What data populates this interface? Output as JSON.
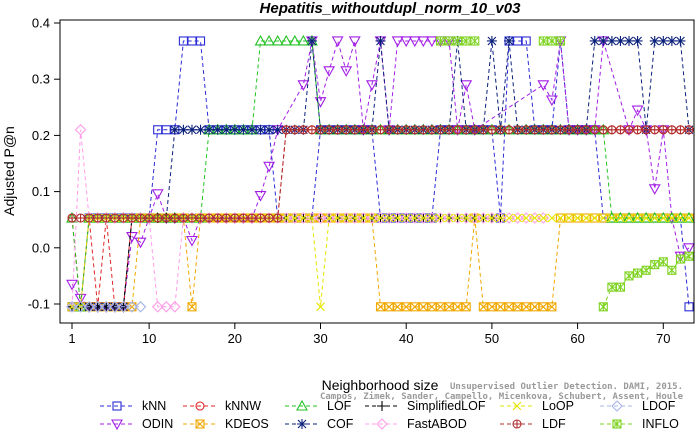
{
  "chart_data": {
    "type": "line",
    "title": "Hepatitis_withoutdupl_norm_10_v03",
    "xlabel": "Neighborhood size",
    "ylabel": "Adjusted P@n",
    "xlim": [
      1,
      73
    ],
    "ylim": [
      -0.12,
      0.39
    ],
    "x_ticks": [
      1,
      10,
      20,
      30,
      40,
      50,
      60,
      70
    ],
    "y_ticks": [
      -0.1,
      0.0,
      0.1,
      0.2,
      0.3,
      0.4
    ],
    "x_tick_labels": [
      "1",
      "10",
      "20",
      "30",
      "40",
      "50",
      "60",
      "70"
    ],
    "y_tick_labels": [
      "-0.1",
      "0.0",
      "0.1",
      "0.2",
      "0.3",
      "0.4"
    ],
    "credit_lines": [
      "Unsupervised Outlier Detection. DAMI, 2015.",
      "Campos, Zimek, Sander, Campello, Micenkova, Schubert, Assent, Houle"
    ],
    "grid": false,
    "legend_position": "bottom",
    "series": [
      {
        "name": "kNN",
        "color": "#2b2bd6",
        "marker": "square",
        "segments": [
          [
            [
              1,
              -0.105
            ],
            [
              2,
              -0.105
            ],
            [
              3,
              0.053
            ],
            [
              9,
              0.053
            ],
            [
              10,
              0.053
            ],
            [
              11,
              0.21
            ],
            [
              12,
              0.21
            ],
            [
              13,
              0.21
            ],
            [
              14,
              0.368
            ],
            [
              16,
              0.368
            ],
            [
              17,
              0.21
            ],
            [
              24,
              0.21
            ],
            [
              25,
              0.053
            ],
            [
              29,
              0.053
            ],
            [
              30,
              0.21
            ],
            [
              36,
              0.21
            ],
            [
              37,
              0.053
            ],
            [
              43,
              0.053
            ],
            [
              44,
              0.21
            ],
            [
              50,
              0.21
            ],
            [
              51,
              0.053
            ],
            [
              52,
              0.368
            ],
            [
              54,
              0.368
            ],
            [
              55,
              0.21
            ],
            [
              57,
              0.21
            ],
            [
              58,
              0.368
            ],
            [
              59,
              0.21
            ],
            [
              62,
              0.21
            ],
            [
              63,
              0.053
            ],
            [
              72,
              0.053
            ],
            [
              73,
              -0.105
            ]
          ]
        ]
      },
      {
        "name": "ODIN",
        "color": "#a21ee6",
        "marker": "triangle-down",
        "segments": [
          [
            [
              1,
              -0.065
            ],
            [
              2,
              -0.09
            ],
            [
              3,
              -0.105
            ],
            [
              7,
              -0.105
            ],
            [
              8,
              0.02
            ],
            [
              9,
              0.01
            ],
            [
              10,
              0.053
            ],
            [
              11,
              0.096
            ],
            [
              12,
              0.053
            ],
            [
              13,
              0.053
            ],
            [
              14,
              0.053
            ],
            [
              15,
              0.013
            ],
            [
              16,
              0.053
            ],
            [
              22,
              0.053
            ],
            [
              23,
              0.093
            ],
            [
              24,
              0.145
            ],
            [
              25,
              0.21
            ],
            [
              28,
              0.29
            ],
            [
              29,
              0.368
            ],
            [
              30,
              0.26
            ],
            [
              31,
              0.315
            ],
            [
              32,
              0.368
            ],
            [
              33,
              0.315
            ],
            [
              34,
              0.368
            ],
            [
              35,
              0.21
            ],
            [
              36,
              0.29
            ],
            [
              37,
              0.368
            ],
            [
              38,
              0.21
            ],
            [
              39,
              0.368
            ],
            [
              45,
              0.368
            ],
            [
              46,
              0.21
            ],
            [
              47,
              0.29
            ],
            [
              48,
              0.21
            ],
            [
              56,
              0.29
            ],
            [
              57,
              0.263
            ],
            [
              58,
              0.368
            ],
            [
              59,
              0.21
            ],
            [
              62,
              0.21
            ],
            [
              63,
              0.368
            ],
            [
              66,
              0.21
            ],
            [
              67,
              0.245
            ],
            [
              68,
              0.21
            ],
            [
              69,
              0.105
            ],
            [
              70,
              0.21
            ],
            [
              71,
              0.053
            ],
            [
              72,
              -0.015
            ],
            [
              73,
              0.0
            ]
          ]
        ]
      },
      {
        "name": "kNNW",
        "color": "#e02424",
        "marker": "circle",
        "segments": [
          [
            [
              1,
              0.053
            ],
            [
              2,
              -0.105
            ],
            [
              3,
              0.053
            ],
            [
              4,
              -0.105
            ],
            [
              5,
              0.053
            ],
            [
              6,
              -0.105
            ],
            [
              7,
              -0.105
            ],
            [
              8,
              0.053
            ],
            [
              25,
              0.053
            ],
            [
              26,
              0.21
            ],
            [
              73,
              0.21
            ]
          ]
        ]
      },
      {
        "name": "KDEOS",
        "color": "#f0a800",
        "marker": "square-x",
        "segments": [
          [
            [
              1,
              -0.105
            ],
            [
              8,
              -0.105
            ],
            [
              9,
              0.053
            ],
            [
              14,
              0.053
            ],
            [
              15,
              -0.105
            ],
            [
              16,
              0.053
            ],
            [
              36,
              0.053
            ],
            [
              37,
              -0.105
            ],
            [
              47,
              -0.105
            ],
            [
              48,
              0.053
            ],
            [
              49,
              -0.105
            ],
            [
              57,
              -0.105
            ],
            [
              58,
              0.053
            ],
            [
              73,
              0.053
            ]
          ]
        ]
      },
      {
        "name": "LOF",
        "color": "#22c222",
        "marker": "triangle-up",
        "segments": [
          [
            [
              1,
              0.053
            ],
            [
              2,
              -0.105
            ],
            [
              3,
              0.053
            ],
            [
              16,
              0.053
            ],
            [
              17,
              0.21
            ],
            [
              22,
              0.21
            ],
            [
              23,
              0.368
            ],
            [
              29,
              0.368
            ],
            [
              30,
              0.21
            ],
            [
              63,
              0.21
            ],
            [
              64,
              0.053
            ],
            [
              73,
              0.053
            ]
          ]
        ]
      },
      {
        "name": "COF",
        "color": "#0a1f7a",
        "marker": "star",
        "segments": [
          [
            [
              1,
              -0.105
            ],
            [
              7,
              -0.105
            ],
            [
              8,
              0.053
            ],
            [
              12,
              0.053
            ],
            [
              13,
              0.21
            ],
            [
              28,
              0.21
            ],
            [
              29,
              0.368
            ],
            [
              30,
              0.21
            ],
            [
              36,
              0.21
            ],
            [
              37,
              0.368
            ],
            [
              38,
              0.21
            ],
            [
              45,
              0.21
            ],
            [
              46,
              0.368
            ],
            [
              47,
              0.21
            ],
            [
              49,
              0.21
            ],
            [
              50,
              0.368
            ],
            [
              51,
              0.21
            ],
            [
              52,
              0.368
            ],
            [
              53,
              0.21
            ],
            [
              61,
              0.21
            ],
            [
              62,
              0.368
            ],
            [
              67,
              0.368
            ],
            [
              68,
              0.21
            ],
            [
              69,
              0.368
            ],
            [
              72,
              0.368
            ],
            [
              73,
              0.21
            ]
          ]
        ]
      },
      {
        "name": "SimplifiedLOF",
        "color": "#000000",
        "marker": "plus",
        "segments": [
          [
            [
              1,
              -0.105
            ],
            [
              7,
              -0.105
            ],
            [
              8,
              0.053
            ],
            [
              51,
              0.053
            ]
          ]
        ]
      },
      {
        "name": "FastABOD",
        "color": "#ff9ee8",
        "marker": "diamond",
        "segments": [
          [
            [
              1,
              -0.105
            ],
            [
              2,
              0.21
            ],
            [
              3,
              0.053
            ],
            [
              10,
              0.053
            ],
            [
              11,
              -0.105
            ],
            [
              13,
              -0.105
            ],
            [
              14,
              0.053
            ],
            [
              52,
              0.053
            ],
            [
              56,
              0.053
            ]
          ]
        ]
      },
      {
        "name": "LoOP",
        "color": "#e6e600",
        "marker": "x",
        "segments": [
          [
            [
              1,
              -0.105
            ],
            [
              2,
              -0.105
            ],
            [
              3,
              0.053
            ],
            [
              29,
              0.053
            ],
            [
              30,
              -0.105
            ],
            [
              31,
              0.053
            ],
            [
              73,
              0.053
            ]
          ]
        ]
      },
      {
        "name": "LDF",
        "color": "#b03030",
        "marker": "circle-plus",
        "segments": [
          [
            [
              1,
              0.053
            ],
            [
              25,
              0.053
            ],
            [
              26,
              0.21
            ],
            [
              73,
              0.21
            ]
          ]
        ]
      },
      {
        "name": "LDOF",
        "color": "#a8b4e6",
        "marker": "diamond",
        "segments": [
          [
            [
              1,
              -0.105
            ],
            [
              8,
              -0.105
            ],
            [
              9,
              -0.105
            ]
          ]
        ]
      },
      {
        "name": "INFLO",
        "color": "#7ed321",
        "marker": "star-x",
        "segments": [
          [
            [
              44,
              0.368
            ],
            [
              48,
              0.368
            ]
          ],
          [
            [
              56,
              0.368
            ],
            [
              58,
              0.368
            ]
          ],
          [
            [
              63,
              -0.105
            ],
            [
              64,
              -0.07
            ],
            [
              65,
              -0.07
            ],
            [
              66,
              -0.05
            ],
            [
              67,
              -0.045
            ],
            [
              68,
              -0.04
            ],
            [
              69,
              -0.03
            ],
            [
              70,
              -0.025
            ],
            [
              71,
              -0.04
            ],
            [
              72,
              -0.02
            ],
            [
              73,
              -0.015
            ]
          ]
        ]
      }
    ]
  }
}
